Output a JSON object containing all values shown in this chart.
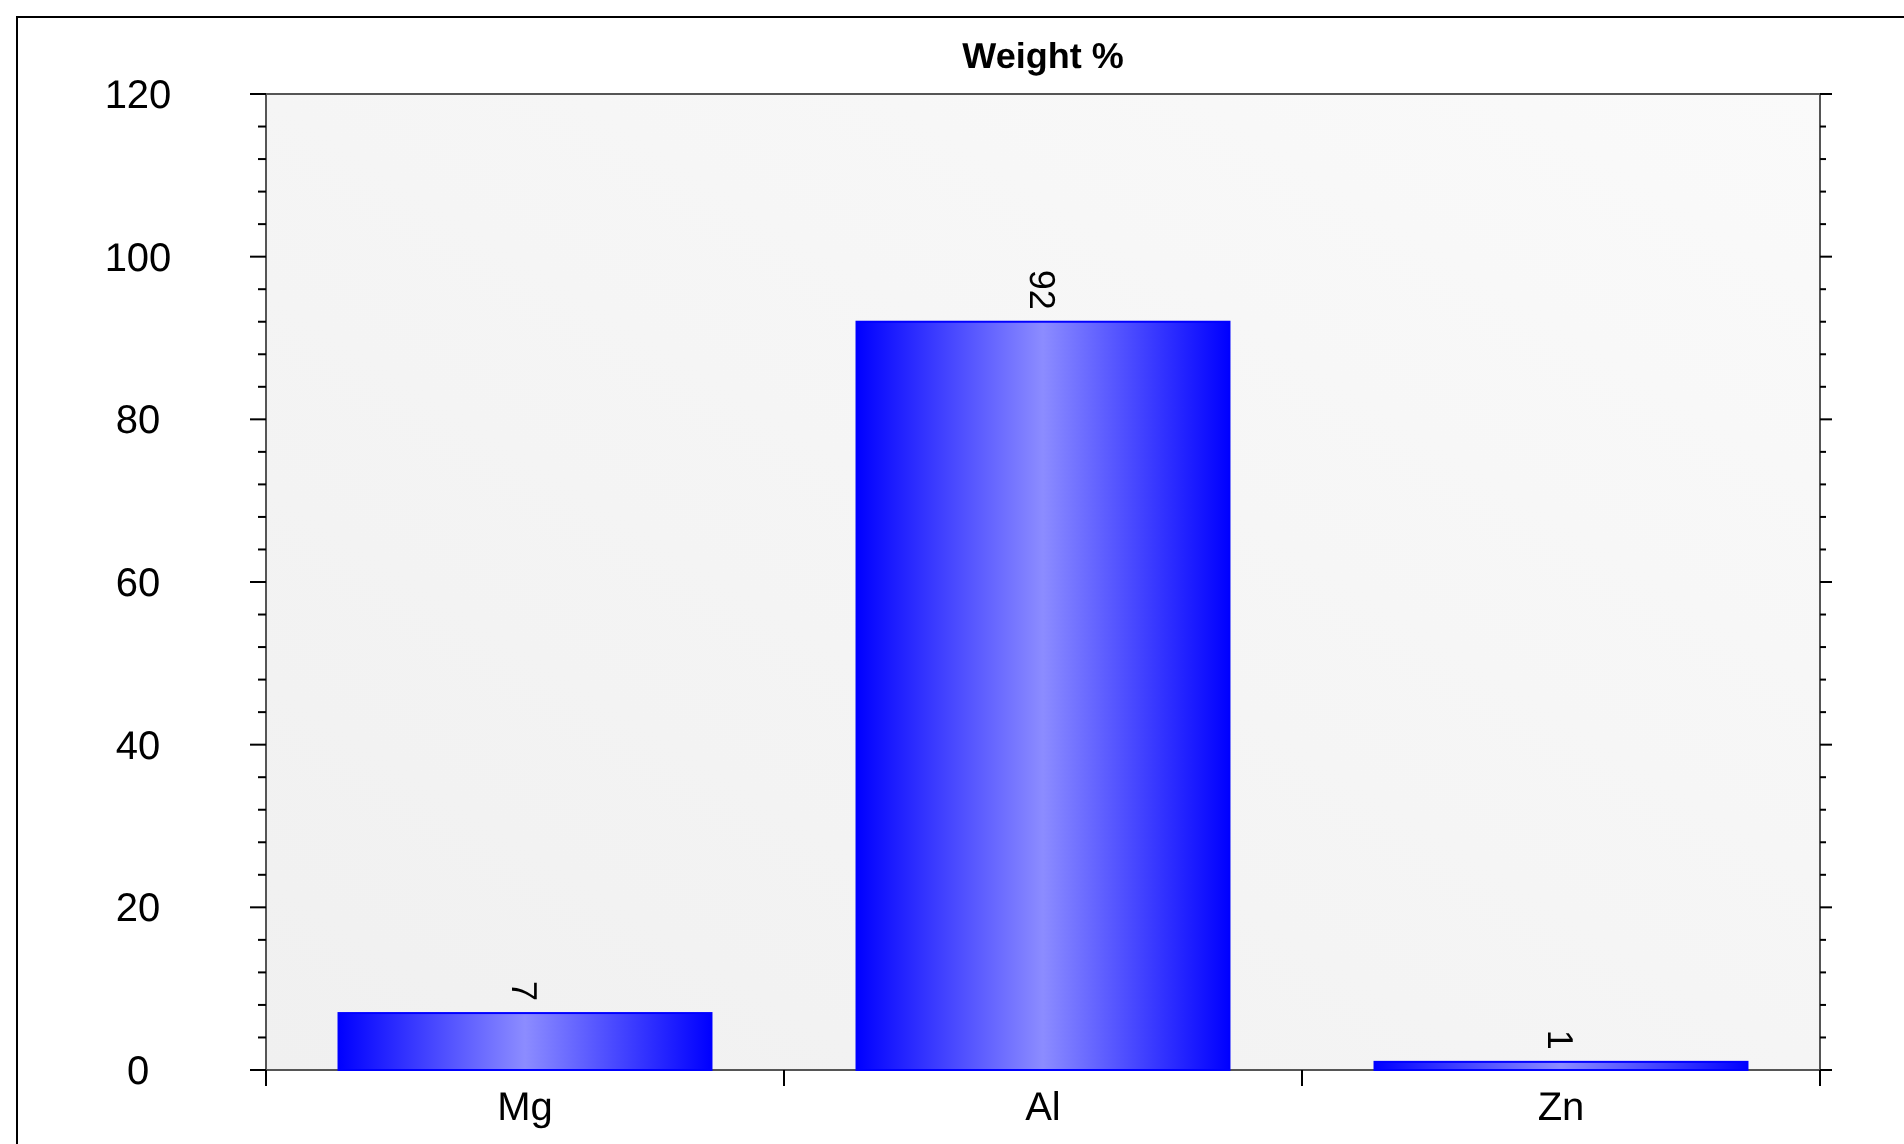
{
  "chart_data": {
    "type": "bar",
    "title": "Weight %",
    "categories": [
      "Mg",
      "Al",
      "Zn"
    ],
    "values": [
      7,
      92,
      1
    ],
    "color": "#0000ff",
    "ylim": [
      0,
      120
    ],
    "yticks": [
      0,
      20,
      40,
      60,
      80,
      100,
      120
    ],
    "data_labels": true,
    "grid": false
  }
}
